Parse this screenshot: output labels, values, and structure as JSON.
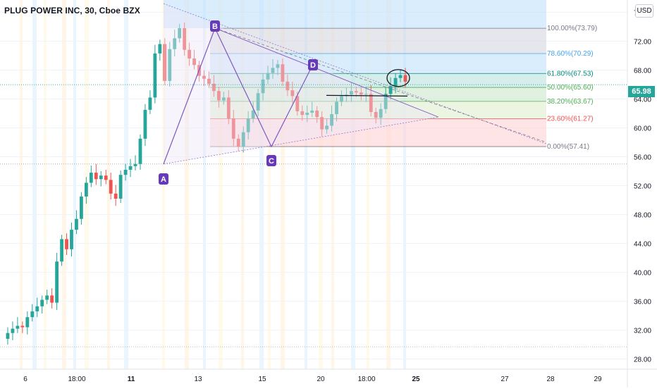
{
  "header": {
    "title": "PLUG POWER INC, 30, Cboe BZX"
  },
  "price_axis": {
    "currency": "USD",
    "current_price": "65.98"
  },
  "colors": {
    "up": "#26a69a",
    "down": "#ef5350",
    "pattern": "#7e57c2",
    "pattern_fill": "#ede7f6",
    "fib_100": "#d1d4dc",
    "fib_786": "#bbdefb",
    "fib_618": "#b2dfdb",
    "fib_500": "#c8e6c9",
    "fib_382": "#dcedc8",
    "fib_236": "#ffcdd2",
    "label_blue": "#42a5f5",
    "label_teal": "#00897b",
    "label_green": "#4caf50",
    "label_red": "#ef5350",
    "label_gray": "#787b86"
  },
  "chart_data": {
    "type": "candlestick",
    "title": "PLUG POWER INC, 30, Cboe BZX",
    "symbol": "PLUG POWER INC",
    "interval": "30",
    "exchange": "Cboe BZX",
    "xlabel": "",
    "ylabel": "",
    "ylim": [
      26.6,
      77.7
    ],
    "y_ticks": [
      "76.00",
      "72.00",
      "68.00",
      "64.00",
      "60.00",
      "56.00",
      "52.00",
      "48.00",
      "44.00",
      "40.00",
      "36.00",
      "32.00",
      "28.00"
    ],
    "x_ticks": [
      "6",
      "18:00",
      "11",
      "13",
      "15",
      "20",
      "18:00",
      "25",
      "27",
      "28",
      "29"
    ],
    "last_price": 65.98,
    "pattern_points": [
      {
        "label": "A",
        "price": 55.0
      },
      {
        "label": "B",
        "price": 73.8
      },
      {
        "label": "C",
        "price": 57.4
      },
      {
        "label": "D",
        "price": 68.8
      }
    ],
    "fibonacci_levels": [
      {
        "ratio": "100.00%",
        "price": 73.79,
        "label": "100.00%(73.79)"
      },
      {
        "ratio": "78.60%",
        "price": 70.29,
        "label": "78.60%(70.29)"
      },
      {
        "ratio": "61.80%",
        "price": 67.53,
        "label": "61.80%(67.53)"
      },
      {
        "ratio": "50.00%",
        "price": 65.6,
        "label": "50.00%(65.60)"
      },
      {
        "ratio": "38.20%",
        "price": 63.67,
        "label": "38.20%(63.67)"
      },
      {
        "ratio": "23.60%",
        "price": 61.27,
        "label": "23.60%(61.27)"
      },
      {
        "ratio": "0.00%",
        "price": 57.41,
        "label": "0.00%(57.41)"
      }
    ],
    "price_path": [
      30.8,
      31.6,
      32.2,
      32.6,
      32.4,
      33.8,
      34.6,
      35.3,
      36.2,
      36.8,
      35.8,
      41.5,
      44.6,
      43.2,
      45.9,
      47.4,
      50.5,
      52.4,
      53.8,
      52.9,
      53.4,
      52.8,
      50.9,
      50.2,
      53.5,
      54.2,
      54.7,
      55.0,
      58.5,
      62.5,
      64.2,
      70.3,
      71.6,
      66.5,
      70.9,
      72.4,
      73.8,
      70.8,
      69.6,
      68.7,
      67.2,
      66.8,
      66.1,
      65.1,
      63.8,
      64.2,
      61.3,
      58.5,
      57.4,
      59.4,
      61.3,
      62.4,
      64.8,
      66.7,
      67.6,
      68.3,
      68.8,
      66.4,
      65.2,
      64.4,
      62.3,
      61.8,
      62.1,
      62.4,
      61.5,
      59.8,
      60.3,
      61.9,
      63.6,
      64.4,
      64.6,
      65.1,
      64.9,
      64.6,
      64.7,
      62.2,
      61.4,
      62.6,
      64.7,
      65.8,
      66.9,
      67.3,
      66.4
    ]
  }
}
